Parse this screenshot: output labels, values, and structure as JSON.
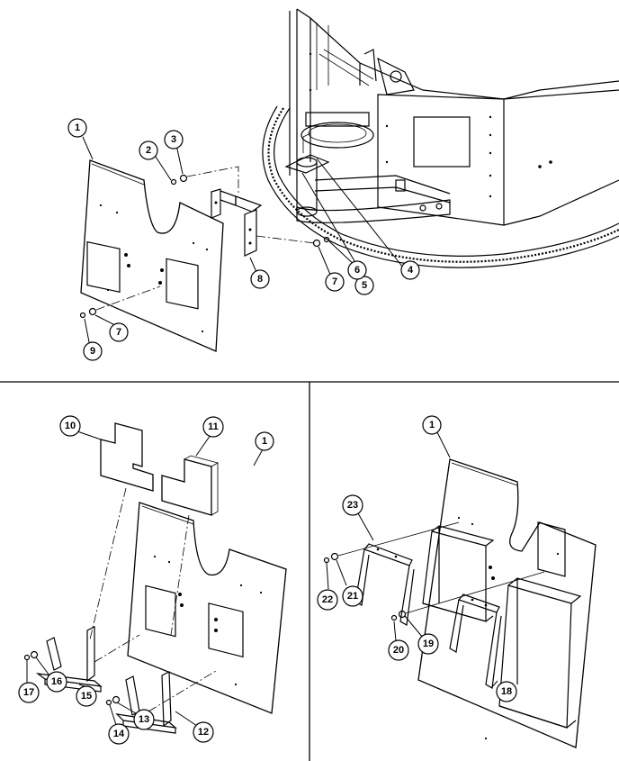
{
  "callouts": {
    "top": [
      "1",
      "2",
      "3",
      "4",
      "5",
      "6",
      "7",
      "8",
      "7",
      "9"
    ],
    "bottom_left": [
      "10",
      "11",
      "1",
      "17",
      "16",
      "15",
      "14",
      "13",
      "12"
    ],
    "bottom_right": [
      "1",
      "23",
      "22",
      "21",
      "20",
      "19",
      "18"
    ]
  }
}
